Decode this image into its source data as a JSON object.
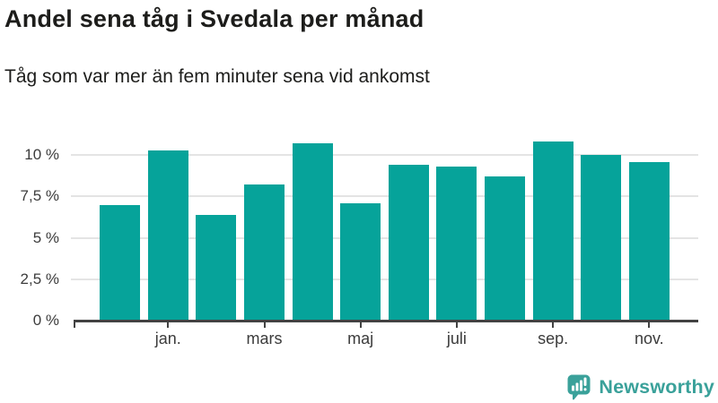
{
  "header": {
    "title": "Andel sena tåg i Svedala per månad",
    "subtitle": "Tåg som var mer än fem minuter sena vid ankomst"
  },
  "chart_data": {
    "type": "bar",
    "title": "Andel sena tåg i Svedala per månad",
    "subtitle": "Tåg som var mer än fem minuter sena vid ankomst",
    "unit": "%",
    "categories": [
      "",
      "jan.",
      "",
      "mars",
      "",
      "maj",
      "",
      "juli",
      "",
      "sep.",
      "",
      "nov."
    ],
    "values": [
      7.0,
      10.3,
      6.4,
      8.2,
      10.7,
      7.1,
      9.4,
      9.3,
      8.7,
      10.8,
      10.0,
      9.6
    ],
    "y_ticks": [
      0,
      2.5,
      5,
      7.5,
      10
    ],
    "y_tick_labels": [
      "0 %",
      "2,5 %",
      "5 %",
      "7,5 %",
      "10 %"
    ],
    "x_tick_labels": [
      "jan.",
      "mars",
      "maj",
      "juli",
      "sep.",
      "nov."
    ],
    "ylim": [
      0,
      11.2
    ],
    "grid": true,
    "legend": "none",
    "bar_color": "#06a39a"
  },
  "colors": {
    "bar": "#06a39a",
    "grid": "#e4e4e4",
    "axis": "#424242",
    "axis_text": "#3c3c3c",
    "text": "#1d1d1b",
    "brand": "#3aa19a"
  },
  "footer": {
    "brand": "Newsworthy"
  }
}
